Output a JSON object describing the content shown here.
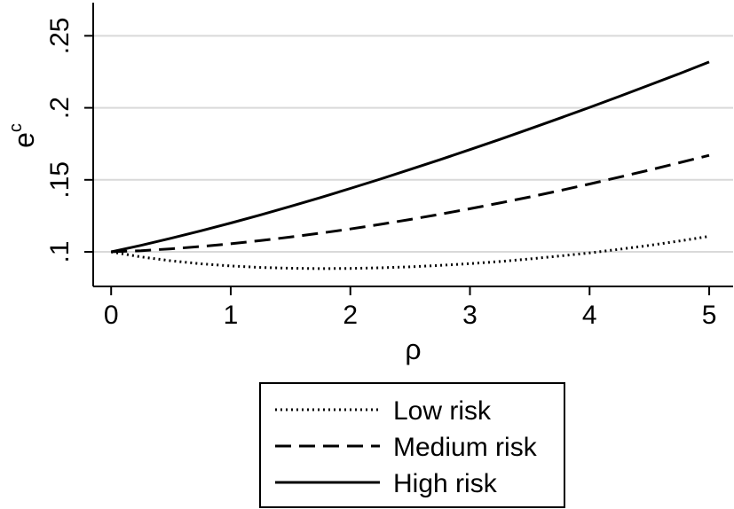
{
  "chart_data": {
    "type": "line",
    "xlabel": "ρ",
    "ylabel_base": "e",
    "ylabel_sup": "c",
    "xlim": [
      -0.15,
      5.2
    ],
    "ylim": [
      0.076,
      0.273
    ],
    "xticks": [
      0,
      1,
      2,
      3,
      4,
      5
    ],
    "xtick_labels": [
      "0",
      "1",
      "2",
      "3",
      "4",
      "5"
    ],
    "yticks": [
      0.1,
      0.15,
      0.2,
      0.25
    ],
    "ytick_labels": [
      ".1",
      ".15",
      ".2",
      ".25"
    ],
    "grid": "horizontal",
    "legend_position": "bottom",
    "series": [
      {
        "name": "Low risk",
        "style": "dotted",
        "x": [
          0,
          0.25,
          0.5,
          0.75,
          1,
          1.25,
          1.5,
          1.75,
          2,
          2.25,
          2.5,
          2.75,
          3,
          3.25,
          3.5,
          3.75,
          4,
          4.25,
          4.5,
          4.75,
          5
        ],
        "y": [
          0.1,
          0.0965,
          0.0938,
          0.0917,
          0.0902,
          0.0892,
          0.0886,
          0.0884,
          0.0885,
          0.0889,
          0.0896,
          0.0906,
          0.0918,
          0.0933,
          0.0951,
          0.0971,
          0.0993,
          0.1018,
          0.1045,
          0.1075,
          0.1108
        ]
      },
      {
        "name": "Medium risk",
        "style": "dashed",
        "x": [
          0,
          0.25,
          0.5,
          0.75,
          1,
          1.25,
          1.5,
          1.75,
          2,
          2.25,
          2.5,
          2.75,
          3,
          3.25,
          3.5,
          3.75,
          4,
          4.25,
          4.5,
          4.75,
          5
        ],
        "y": [
          0.1,
          0.1008,
          0.1021,
          0.1037,
          0.1056,
          0.1078,
          0.1103,
          0.113,
          0.1159,
          0.1191,
          0.1225,
          0.1261,
          0.1299,
          0.1339,
          0.1381,
          0.1425,
          0.1471,
          0.1519,
          0.1568,
          0.1619,
          0.167
        ]
      },
      {
        "name": "High risk",
        "style": "solid",
        "x": [
          0,
          0.25,
          0.5,
          0.75,
          1,
          1.25,
          1.5,
          1.75,
          2,
          2.25,
          2.5,
          2.75,
          3,
          3.25,
          3.5,
          3.75,
          4,
          4.25,
          4.5,
          4.75,
          5
        ],
        "y": [
          0.1,
          0.1045,
          0.1094,
          0.1146,
          0.12,
          0.1257,
          0.1316,
          0.1377,
          0.144,
          0.1505,
          0.1572,
          0.164,
          0.171,
          0.1781,
          0.1854,
          0.1928,
          0.2003,
          0.208,
          0.2158,
          0.2237,
          0.2318
        ]
      }
    ]
  }
}
